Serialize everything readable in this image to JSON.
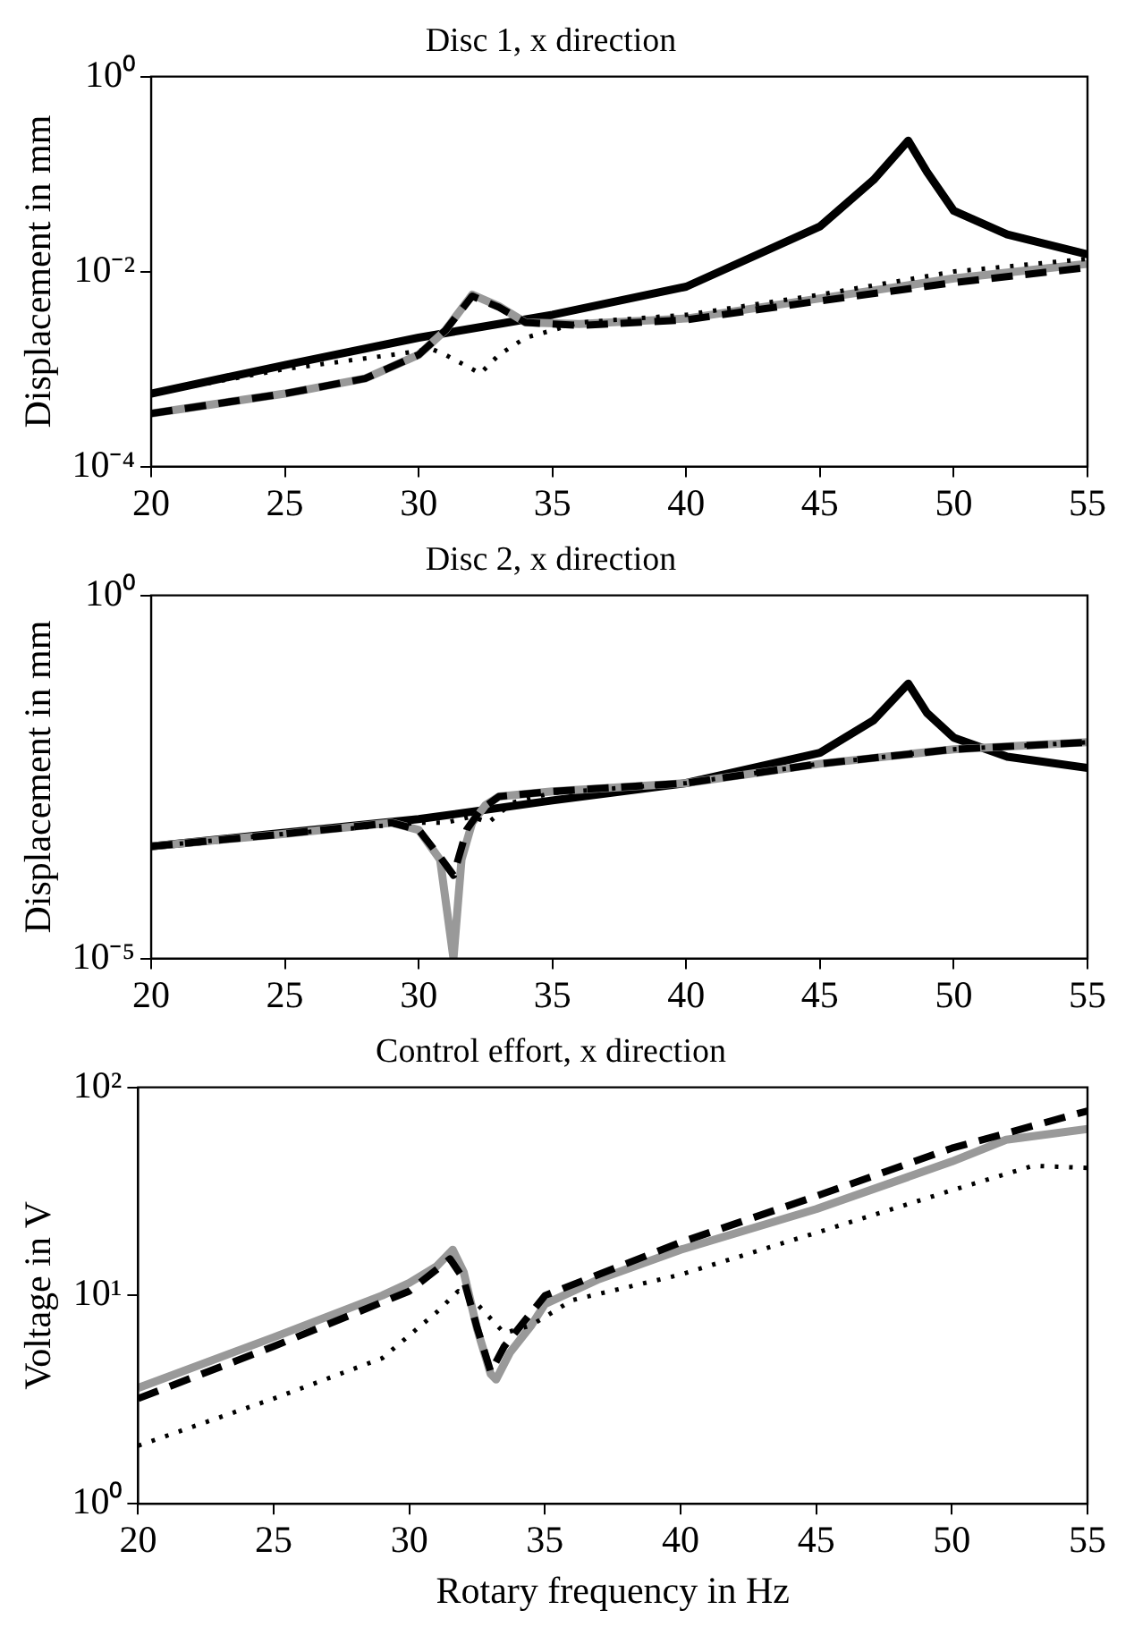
{
  "chart_data": [
    {
      "type": "line",
      "title": "Disc 1, x direction",
      "ylabel": "Displacement in mm",
      "log": true,
      "grid": false,
      "legend": false,
      "xlim": [
        20,
        55
      ],
      "xticks": [
        20,
        25,
        30,
        35,
        40,
        45,
        50,
        55
      ],
      "ylim": [
        0.0001,
        1
      ],
      "yticks": [
        {
          "value": 0.0001,
          "label": "10⁻⁴"
        },
        {
          "value": 0.01,
          "label": "10⁻²"
        },
        {
          "value": 1,
          "label": "10⁰"
        }
      ],
      "series": [
        {
          "color": "#000000",
          "line_style": "solid",
          "x": [
            20,
            25,
            30,
            35,
            40,
            45,
            47,
            48.3,
            49,
            50,
            52,
            55
          ],
          "values": [
            0.00056,
            0.0011,
            0.0021,
            0.0036,
            0.007,
            0.029,
            0.087,
            0.22,
            0.105,
            0.042,
            0.024,
            0.015
          ]
        },
        {
          "color": "#999999",
          "line_style": "solid",
          "x": [
            20,
            25,
            28,
            30,
            31,
            32,
            33,
            34,
            36,
            40,
            45,
            50,
            55
          ],
          "values": [
            0.00035,
            0.00056,
            0.0008,
            0.0014,
            0.0025,
            0.0058,
            0.0044,
            0.003,
            0.0029,
            0.0033,
            0.0053,
            0.0085,
            0.012
          ]
        },
        {
          "color": "#000000",
          "line_style": "dashed",
          "x": [
            20,
            25,
            28,
            30,
            31,
            32,
            33,
            34,
            36,
            40,
            45,
            50,
            55
          ],
          "values": [
            0.00035,
            0.00056,
            0.0008,
            0.0014,
            0.0025,
            0.0056,
            0.0043,
            0.003,
            0.0028,
            0.0032,
            0.005,
            0.0077,
            0.011
          ]
        },
        {
          "color": "#000000",
          "line_style": "dotted",
          "x": [
            20,
            25,
            29,
            30.5,
            31,
            32,
            32.3,
            33,
            34,
            35,
            36,
            40,
            45,
            50,
            55
          ],
          "values": [
            0.00056,
            0.001,
            0.0014,
            0.0016,
            0.0014,
            0.001,
            0.0009,
            0.0014,
            0.0021,
            0.0025,
            0.003,
            0.0036,
            0.0058,
            0.01,
            0.0135
          ]
        }
      ]
    },
    {
      "type": "line",
      "title": "Disc 2, x direction",
      "ylabel": "Displacement in mm",
      "log": true,
      "grid": false,
      "legend": false,
      "xlim": [
        20,
        55
      ],
      "xticks": [
        20,
        25,
        30,
        35,
        40,
        45,
        50,
        55
      ],
      "ylim": [
        1e-05,
        1
      ],
      "yticks": [
        {
          "value": 1e-05,
          "label": "10⁻⁵"
        },
        {
          "value": 1,
          "label": "10⁰"
        }
      ],
      "series": [
        {
          "color": "#000000",
          "line_style": "solid",
          "x": [
            20,
            30,
            35,
            40,
            45,
            47,
            48.3,
            49,
            50,
            52,
            55
          ],
          "values": [
            0.00035,
            0.00083,
            0.0015,
            0.0026,
            0.0068,
            0.019,
            0.061,
            0.024,
            0.011,
            0.006,
            0.0042
          ]
        },
        {
          "color": "#999999",
          "line_style": "solid",
          "x": [
            20,
            25,
            29,
            30,
            30.8,
            31.3,
            31.6,
            32,
            32.5,
            33,
            35,
            40,
            45,
            50,
            55
          ],
          "values": [
            0.00035,
            0.00052,
            0.00074,
            0.00059,
            0.00023,
            1e-05,
            0.00023,
            0.00074,
            0.0013,
            0.0017,
            0.002,
            0.0026,
            0.0048,
            0.0076,
            0.0095
          ]
        },
        {
          "color": "#000000",
          "line_style": "dashed",
          "x": [
            20,
            25,
            29,
            30,
            30.8,
            31.3,
            31.8,
            32.3,
            33,
            35,
            40,
            45,
            50,
            55
          ],
          "values": [
            0.00035,
            0.00052,
            0.00074,
            0.00059,
            0.00025,
            0.00014,
            0.0006,
            0.0011,
            0.0017,
            0.002,
            0.0026,
            0.0048,
            0.0076,
            0.0095
          ]
        },
        {
          "color": "#000000",
          "line_style": "dotted",
          "x": [
            20,
            25,
            30,
            31,
            32,
            32.6,
            33.5,
            35,
            40,
            45,
            50,
            55
          ],
          "values": [
            0.00035,
            0.00052,
            0.00074,
            0.00074,
            0.0009,
            0.00074,
            0.0014,
            0.0019,
            0.0026,
            0.0048,
            0.0076,
            0.0095
          ]
        }
      ]
    },
    {
      "type": "line",
      "title": "Control effort, x direction",
      "xlabel": "Rotary frequency in Hz",
      "ylabel": "Voltage in V",
      "log": true,
      "grid": false,
      "legend": false,
      "xlim": [
        20,
        55
      ],
      "xticks": [
        20,
        25,
        30,
        35,
        40,
        45,
        50,
        55
      ],
      "ylim": [
        1,
        100
      ],
      "yticks": [
        {
          "value": 1,
          "label": "10⁰"
        },
        {
          "value": 10,
          "label": "10¹"
        },
        {
          "value": 100,
          "label": "10²"
        }
      ],
      "series": [
        {
          "color": "#999999",
          "line_style": "solid",
          "x": [
            20,
            25,
            29,
            30,
            31,
            31.6,
            32,
            32.5,
            33,
            33.2,
            33.7,
            34.5,
            35,
            37,
            40,
            45,
            50,
            52,
            55
          ],
          "values": [
            3.6,
            6.3,
            10,
            11.5,
            13.8,
            16.6,
            13,
            6.9,
            4.2,
            3.95,
            5.3,
            7.2,
            9.1,
            12,
            16.6,
            26,
            44,
            56,
            63
          ]
        },
        {
          "color": "#000000",
          "line_style": "dashed",
          "x": [
            20,
            25,
            30,
            31.5,
            32,
            32.5,
            33,
            33.5,
            35,
            40,
            45,
            50,
            55
          ],
          "values": [
            3.2,
            5.7,
            10.5,
            15,
            12,
            7,
            4.3,
            5.7,
            10,
            18,
            30,
            51,
            77
          ]
        },
        {
          "color": "#000000",
          "line_style": "dotted",
          "x": [
            20,
            25,
            29,
            31,
            31.8,
            32.5,
            33.5,
            34.5,
            36,
            40,
            45,
            50,
            53,
            55
          ],
          "values": [
            1.9,
            3.2,
            5,
            8.3,
            10.5,
            9.1,
            6.6,
            7.2,
            9.5,
            12.6,
            20,
            32,
            42,
            41
          ]
        }
      ]
    }
  ]
}
